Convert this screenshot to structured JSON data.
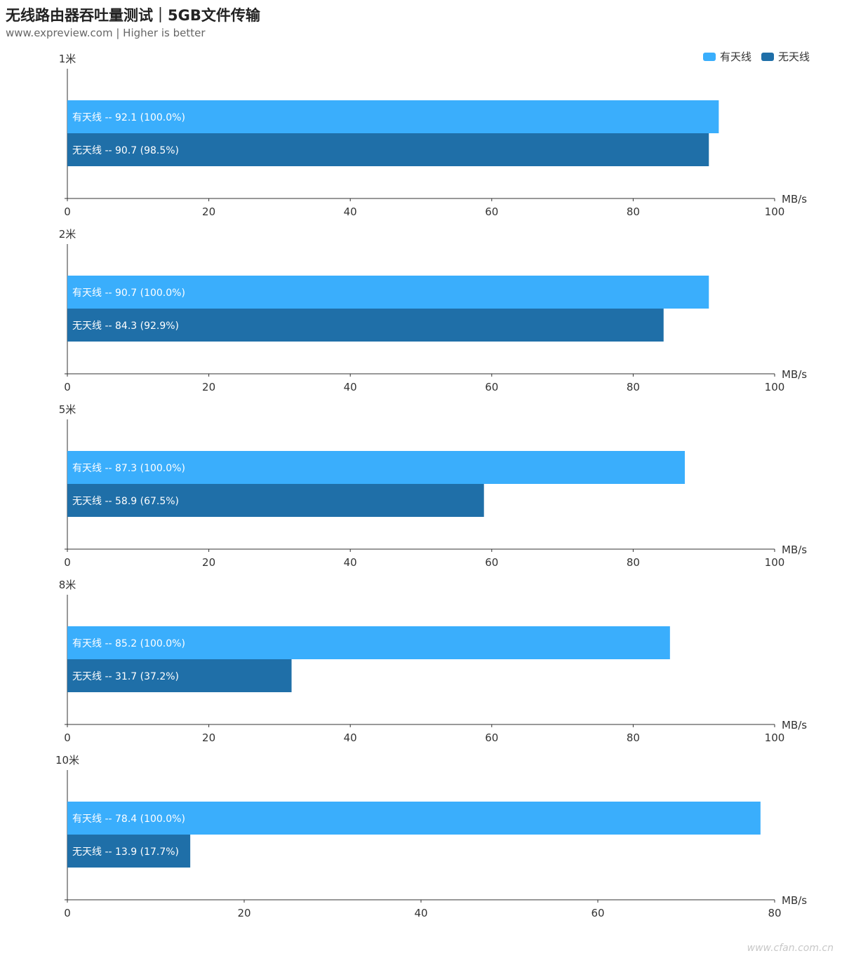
{
  "title": "无线路由器吞吐量测试｜5GB文件传输",
  "subtitle": "www.expreview.com | Higher is better",
  "watermark": "www.cfan.com.cn",
  "unit": "MB/s",
  "colors": {
    "series_a": "#3aaefc",
    "series_b": "#1f6fa8"
  },
  "legend": [
    {
      "label": "有天线",
      "color": "#3aaefc"
    },
    {
      "label": "无天线",
      "color": "#1f6fa8"
    }
  ],
  "chart_data": [
    {
      "type": "bar",
      "orientation": "horizontal",
      "title": "1米",
      "xlabel": "MB/s",
      "xlim": [
        0,
        100
      ],
      "ticks": [
        0,
        20,
        40,
        60,
        80,
        100
      ],
      "series": [
        {
          "name": "有天线",
          "value": 92.1,
          "label": "有天线  --  92.1 (100.0%)"
        },
        {
          "name": "无天线",
          "value": 90.7,
          "label": "无天线  --  90.7 (98.5%)"
        }
      ]
    },
    {
      "type": "bar",
      "orientation": "horizontal",
      "title": "2米",
      "xlabel": "MB/s",
      "xlim": [
        0,
        100
      ],
      "ticks": [
        0,
        20,
        40,
        60,
        80,
        100
      ],
      "series": [
        {
          "name": "有天线",
          "value": 90.7,
          "label": "有天线  --  90.7 (100.0%)"
        },
        {
          "name": "无天线",
          "value": 84.3,
          "label": "无天线  --  84.3 (92.9%)"
        }
      ]
    },
    {
      "type": "bar",
      "orientation": "horizontal",
      "title": "5米",
      "xlabel": "MB/s",
      "xlim": [
        0,
        100
      ],
      "ticks": [
        0,
        20,
        40,
        60,
        80,
        100
      ],
      "series": [
        {
          "name": "有天线",
          "value": 87.3,
          "label": "有天线  --  87.3 (100.0%)"
        },
        {
          "name": "无天线",
          "value": 58.9,
          "label": "无天线  --  58.9 (67.5%)"
        }
      ]
    },
    {
      "type": "bar",
      "orientation": "horizontal",
      "title": "8米",
      "xlabel": "MB/s",
      "xlim": [
        0,
        100
      ],
      "ticks": [
        0,
        20,
        40,
        60,
        80,
        100
      ],
      "series": [
        {
          "name": "有天线",
          "value": 85.2,
          "label": "有天线  --  85.2 (100.0%)"
        },
        {
          "name": "无天线",
          "value": 31.7,
          "label": "无天线  --  31.7 (37.2%)"
        }
      ]
    },
    {
      "type": "bar",
      "orientation": "horizontal",
      "title": "10米",
      "xlabel": "MB/s",
      "xlim": [
        0,
        80
      ],
      "ticks": [
        0,
        20,
        40,
        60,
        80
      ],
      "series": [
        {
          "name": "有天线",
          "value": 78.4,
          "label": "有天线  --  78.4 (100.0%)"
        },
        {
          "name": "无天线",
          "value": 13.9,
          "label": "无天线  --  13.9 (17.7%)"
        }
      ]
    }
  ]
}
